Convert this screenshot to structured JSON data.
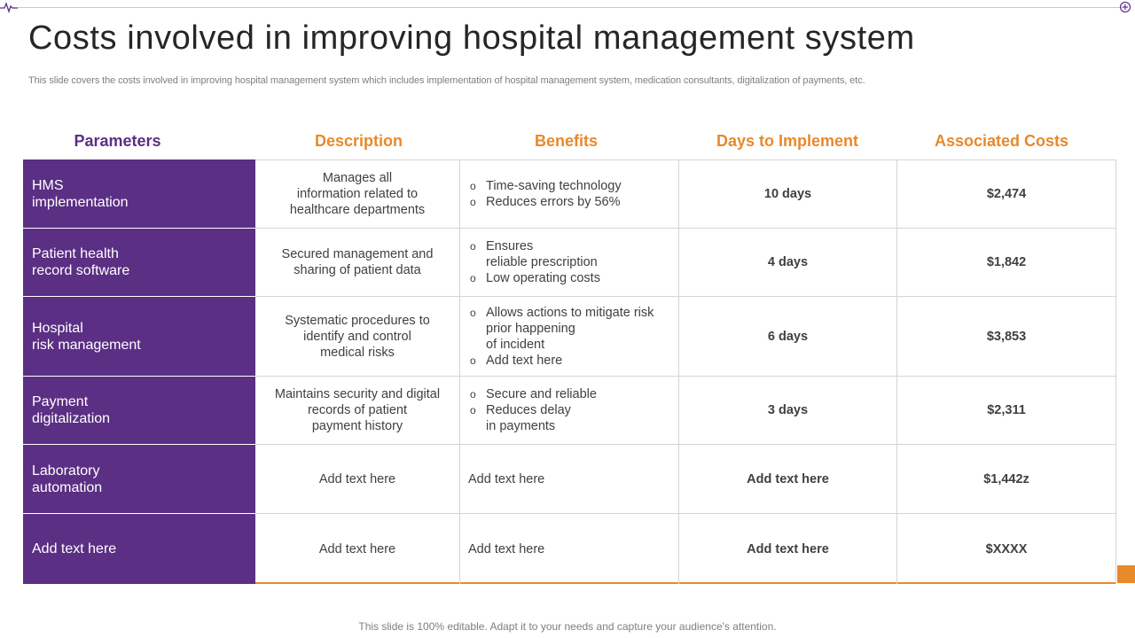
{
  "slide": {
    "title": "Costs involved in improving hospital management system",
    "subtitle": "This slide covers the costs involved in improving hospital management system which includes implementation of hospital management system, medication consultants, digitalization of payments, etc.",
    "footer": "This slide is 100% editable. Adapt it to your needs and capture your audience's attention."
  },
  "colors": {
    "purple": "#5B2F84",
    "orange": "#E8892A"
  },
  "table": {
    "headers": [
      "Parameters",
      "Description",
      "Benefits",
      "Days to Implement",
      "Associated Costs"
    ],
    "rows": [
      {
        "parameter": "HMS\nimplementation",
        "description": "Manages all\ninformation related to\nhealthcare departments",
        "benefits": [
          "Time-saving technology",
          "Reduces errors by 56%"
        ],
        "days": "10 days",
        "cost": "$2,474"
      },
      {
        "parameter": "Patient health\nrecord software",
        "description": "Secured management and\nsharing of patient data",
        "benefits": [
          "Ensures\nreliable prescription",
          "Low operating costs"
        ],
        "days": "4 days",
        "cost": "$1,842"
      },
      {
        "parameter": "Hospital\nrisk management",
        "description": "Systematic procedures to\nidentify and control\nmedical risks",
        "benefits": [
          "Allows actions to mitigate risk\nprior happening\nof incident",
          "Add text here"
        ],
        "days": "6 days",
        "cost": "$3,853"
      },
      {
        "parameter": "Payment\ndigitalization",
        "description": "Maintains security and digital\nrecords of patient\npayment history",
        "benefits": [
          "Secure and reliable",
          "Reduces delay\nin payments"
        ],
        "days": "3 days",
        "cost": "$2,311"
      },
      {
        "parameter": "Laboratory\nautomation",
        "description": "Add text here",
        "benefits_text": "Add text here",
        "days": "Add  text here",
        "cost": "$1,442z"
      },
      {
        "parameter": "Add text here",
        "description": "Add text here",
        "benefits_text": "Add text here",
        "days": "Add  text here",
        "cost": "$XXXX"
      }
    ]
  },
  "icons": {
    "top_left": "heartbeat-icon",
    "top_right": "crosshair-icon"
  }
}
